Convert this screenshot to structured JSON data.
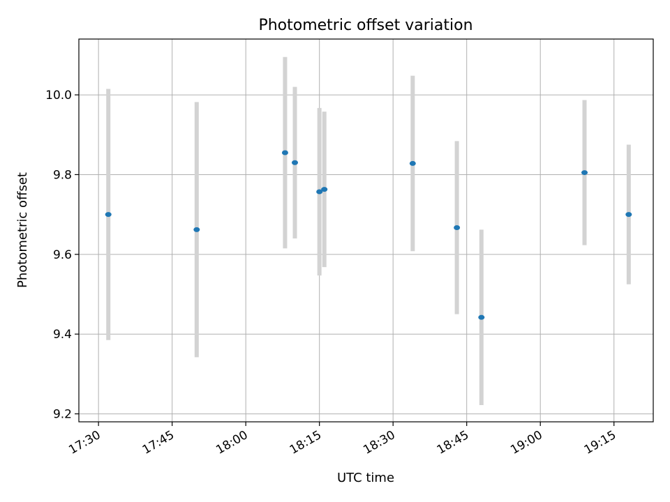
{
  "chart_data": {
    "type": "scatter",
    "title": "Photometric offset variation",
    "xlabel": "UTC time",
    "ylabel": "Photometric offset",
    "xlim": [
      "17:26",
      "19:23"
    ],
    "ylim": [
      9.18,
      10.14
    ],
    "x_ticks": [
      "17:30",
      "17:45",
      "18:00",
      "18:15",
      "18:30",
      "18:45",
      "19:00",
      "19:15"
    ],
    "y_ticks": [
      9.2,
      9.4,
      9.6,
      9.8,
      10.0
    ],
    "y_tick_labels": [
      "9.2",
      "9.4",
      "9.6",
      "9.8",
      "10.0"
    ],
    "grid": true,
    "colors": {
      "point": "#1f77b4",
      "errorbar": "#d3d3d3",
      "grid": "#b0b0b0"
    },
    "points": [
      {
        "x": "17:32",
        "y": 9.7,
        "err": 0.315
      },
      {
        "x": "17:50",
        "y": 9.662,
        "err": 0.32
      },
      {
        "x": "18:08",
        "y": 9.855,
        "err": 0.24
      },
      {
        "x": "18:10",
        "y": 9.83,
        "err": 0.19
      },
      {
        "x": "18:15",
        "y": 9.757,
        "err": 0.21
      },
      {
        "x": "18:16",
        "y": 9.763,
        "err": 0.195
      },
      {
        "x": "18:34",
        "y": 9.828,
        "err": 0.22
      },
      {
        "x": "18:43",
        "y": 9.667,
        "err": 0.217
      },
      {
        "x": "18:48",
        "y": 9.442,
        "err": 0.22
      },
      {
        "x": "19:09",
        "y": 9.805,
        "err": 0.182
      },
      {
        "x": "19:18",
        "y": 9.7,
        "err": 0.175
      }
    ]
  }
}
